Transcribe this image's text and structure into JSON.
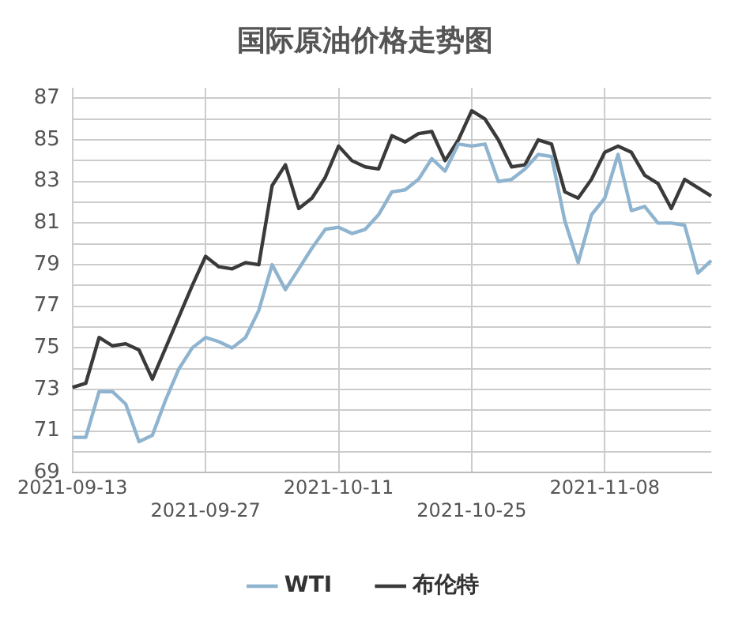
{
  "chart_data": {
    "type": "line",
    "title": "国际原油价格走势图",
    "categories": [
      "2021-09-13",
      null,
      null,
      null,
      null,
      null,
      null,
      null,
      null,
      null,
      "2021-09-27",
      null,
      null,
      null,
      null,
      null,
      null,
      null,
      null,
      null,
      "2021-10-11",
      null,
      null,
      null,
      null,
      null,
      null,
      null,
      null,
      null,
      "2021-10-25",
      null,
      null,
      null,
      null,
      null,
      null,
      null,
      null,
      null,
      "2021-11-08",
      null,
      null,
      null,
      null,
      null,
      null,
      null,
      null
    ],
    "series": [
      {
        "name": "WTI",
        "color": "#8fb4cf",
        "values": [
          70.7,
          70.7,
          72.9,
          72.9,
          72.3,
          70.5,
          70.8,
          72.5,
          74.0,
          75.0,
          75.5,
          75.3,
          75.0,
          75.5,
          76.8,
          79.0,
          77.8,
          78.8,
          79.8,
          80.7,
          80.8,
          80.5,
          80.7,
          81.4,
          82.5,
          82.6,
          83.1,
          84.1,
          83.5,
          84.8,
          84.7,
          84.8,
          83.0,
          83.1,
          83.6,
          84.3,
          84.2,
          81.1,
          79.1,
          81.4,
          82.2,
          84.3,
          81.6,
          81.8,
          81.0,
          81.0,
          80.9,
          78.6,
          79.2
        ]
      },
      {
        "name": "布伦特",
        "color": "#3a3a3a",
        "values": [
          73.1,
          73.3,
          75.5,
          75.1,
          75.2,
          74.9,
          73.5,
          75.0,
          76.5,
          78.0,
          79.4,
          78.9,
          78.8,
          79.1,
          79.0,
          82.8,
          83.8,
          81.7,
          82.2,
          83.2,
          84.7,
          84.0,
          83.7,
          83.6,
          85.2,
          84.9,
          85.3,
          85.4,
          84.0,
          85.0,
          86.4,
          86.0,
          85.0,
          83.7,
          83.8,
          85.0,
          84.8,
          82.5,
          82.2,
          83.1,
          84.4,
          84.7,
          84.4,
          83.3,
          82.9,
          81.7,
          83.1,
          82.7,
          82.3
        ]
      }
    ],
    "ylim": [
      69,
      87.5
    ],
    "yticks": [
      69,
      {
        "value": 70,
        "label": null
      },
      71,
      {
        "value": 72,
        "label": null
      },
      73,
      {
        "value": 74,
        "label": null
      },
      75,
      {
        "value": 76,
        "label": null
      },
      77,
      {
        "value": 78,
        "label": null
      },
      79,
      {
        "value": 80,
        "label": null
      },
      81,
      {
        "value": 82,
        "label": null
      },
      83,
      {
        "value": 84,
        "label": null
      },
      85,
      {
        "value": 86,
        "label": null
      },
      87
    ],
    "grid": true,
    "legend": "bottom",
    "marker": "none",
    "line_style": "solid"
  }
}
